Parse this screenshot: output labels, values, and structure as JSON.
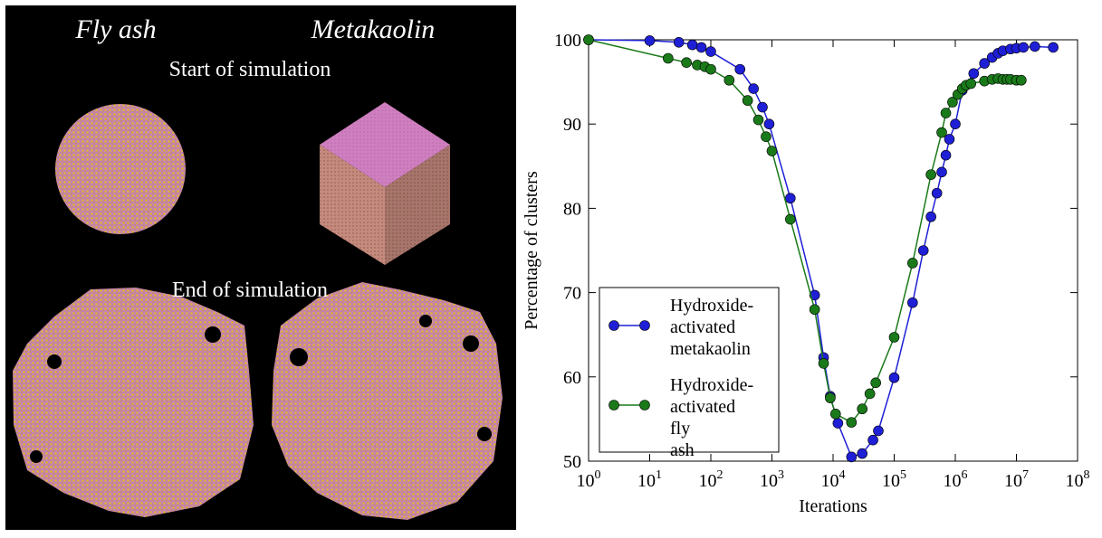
{
  "panel": {
    "top_labels": [
      "Fly ash",
      "Metakaolin"
    ],
    "start_label": "Start of simulation",
    "end_label": "End of simulation"
  },
  "chart_data": {
    "type": "line",
    "x_label": "Iterations",
    "y_label": "Percentage of clusters",
    "log_x": true,
    "legend": "lower left",
    "xlim": [
      1,
      100000000
    ],
    "xticks": [
      {
        "value": 1,
        "label": "10^0"
      },
      {
        "value": 10,
        "label": "10^1"
      },
      {
        "value": 100,
        "label": "10^2"
      },
      {
        "value": 1000,
        "label": "10^3"
      },
      {
        "value": 10000,
        "label": "10^4"
      },
      {
        "value": 100000,
        "label": "10^5"
      },
      {
        "value": 1000000,
        "label": "10^6"
      },
      {
        "value": 10000000,
        "label": "10^7"
      },
      {
        "value": 100000000,
        "label": "10^8"
      }
    ],
    "ylim": [
      50,
      100
    ],
    "yticks": [
      50,
      60,
      70,
      80,
      90,
      100
    ],
    "series": [
      {
        "name": "Hydroxide-activated metakaolin",
        "color": "#1f1fd6",
        "x": [
          1,
          10,
          30,
          50,
          70,
          100,
          300,
          500,
          700,
          900,
          2000,
          5000,
          7000,
          9000,
          12000,
          20000,
          30000,
          45000,
          55000,
          100000,
          200000,
          300000,
          400000,
          500000,
          600000,
          700000,
          800000,
          1000000,
          1300000,
          2000000,
          3000000,
          4000000,
          5000000,
          6000000,
          8000000,
          10000000,
          13000000,
          20000000,
          40000000
        ],
        "values": [
          100,
          99.9,
          99.7,
          99.4,
          99.1,
          98.6,
          96.5,
          94.2,
          92,
          90,
          81.2,
          69.7,
          62.3,
          57.7,
          54.5,
          50.5,
          50.9,
          52.5,
          53.6,
          59.9,
          68.8,
          75,
          79,
          81.8,
          84.3,
          86.3,
          88.2,
          90,
          94,
          96,
          97.2,
          97.9,
          98.4,
          98.7,
          98.9,
          99,
          99.1,
          99.2,
          99.1
        ]
      },
      {
        "name": "Hydroxide-activated fly ash",
        "color": "#1a7a1a",
        "x": [
          1,
          20,
          40,
          60,
          80,
          100,
          200,
          400,
          600,
          800,
          1000,
          2000,
          5000,
          7000,
          9000,
          11000,
          20000,
          30000,
          40000,
          50000,
          100000,
          200000,
          400000,
          600000,
          700000,
          900000,
          1100000,
          1300000,
          1500000,
          1800000,
          3000000,
          4000000,
          5000000,
          6000000,
          7000000,
          8000000,
          10000000,
          12000000
        ],
        "values": [
          100,
          97.8,
          97.3,
          97,
          96.8,
          96.5,
          95.2,
          92.8,
          90.5,
          88.5,
          86.8,
          78.7,
          68,
          61.6,
          57.5,
          55.6,
          54.6,
          56.2,
          58,
          59.3,
          64.7,
          73.5,
          84,
          89,
          91.3,
          92.6,
          93.5,
          94.2,
          94.6,
          94.8,
          95.1,
          95.3,
          95.4,
          95.3,
          95.3,
          95.3,
          95.2,
          95.2
        ]
      }
    ]
  }
}
